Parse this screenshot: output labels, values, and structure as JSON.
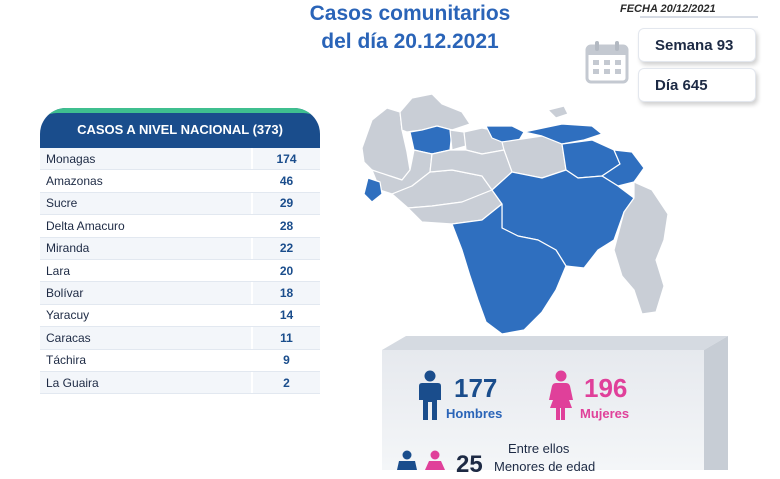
{
  "header": {
    "title_line1": "Casos comunitarios",
    "title_line2": "del día 20.12.2021",
    "fecha": "FECHA 20/12/2021",
    "semana": "Semana 93",
    "dia": "Día 645"
  },
  "national": {
    "label": "CASOS A NIVEL NACIONAL  (373)",
    "rows": [
      {
        "name": "Monagas",
        "value": "174"
      },
      {
        "name": "Amazonas",
        "value": "46"
      },
      {
        "name": "Sucre",
        "value": "29"
      },
      {
        "name": "Delta Amacuro",
        "value": "28"
      },
      {
        "name": "Miranda",
        "value": "22"
      },
      {
        "name": "Lara",
        "value": "20"
      },
      {
        "name": "Bolívar",
        "value": "18"
      },
      {
        "name": "Yaracuy",
        "value": "14"
      },
      {
        "name": "Caracas",
        "value": "11"
      },
      {
        "name": "Táchira",
        "value": "9"
      },
      {
        "name": "La Guaira",
        "value": "2"
      }
    ]
  },
  "stats": {
    "men_count": "177",
    "men_label": "Hombres",
    "women_count": "196",
    "women_label": "Mujeres",
    "minors_intro": "Entre ellos",
    "minors_count": "25",
    "minors_label": "Menores de edad"
  },
  "colors": {
    "highlight_state": "#2f6fbf",
    "other_state": "#c9ced6",
    "header_blue": "#1a4d8c",
    "header_green": "#3fbf8f",
    "women_pink": "#e0409a"
  }
}
